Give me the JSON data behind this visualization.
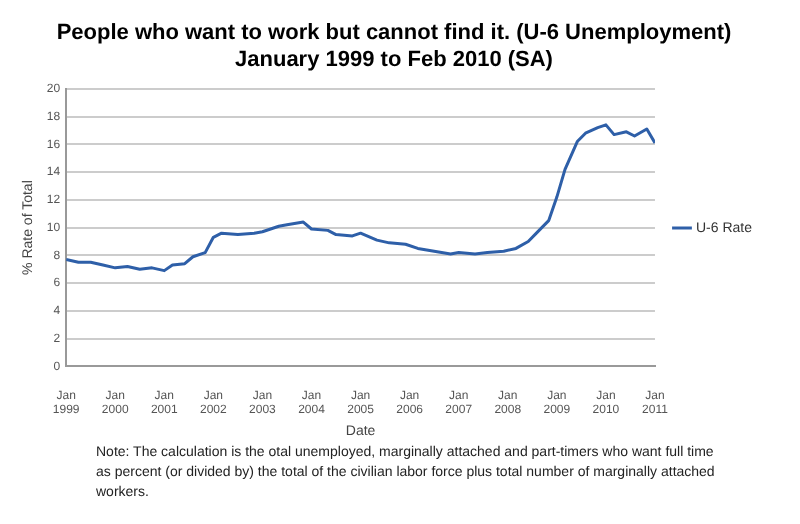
{
  "chart_data": {
    "type": "line",
    "title": "People who want to work but cannot find it. (U-6 Unemployment)",
    "subtitle": "January 1999 to Feb 2010 (SA)",
    "xlabel": "Date",
    "ylabel": "% Rate of Total",
    "x": [
      "1999-01",
      "1999-04",
      "1999-07",
      "1999-10",
      "2000-01",
      "2000-04",
      "2000-07",
      "2000-10",
      "2001-01",
      "2001-03",
      "2001-06",
      "2001-08",
      "2001-11",
      "2002-01",
      "2002-03",
      "2002-07",
      "2002-11",
      "2003-01",
      "2003-05",
      "2003-07",
      "2003-11",
      "2004-01",
      "2004-05",
      "2004-07",
      "2004-11",
      "2005-01",
      "2005-05",
      "2005-08",
      "2005-12",
      "2006-03",
      "2006-07",
      "2006-11",
      "2007-01",
      "2007-05",
      "2007-08",
      "2007-12",
      "2008-03",
      "2008-06",
      "2008-08",
      "2008-11",
      "2009-01",
      "2009-03",
      "2009-06",
      "2009-08",
      "2009-11",
      "2010-01",
      "2010-03",
      "2010-06",
      "2010-08",
      "2010-11",
      "2011-01"
    ],
    "series": [
      {
        "name": "U-6 Rate",
        "color": "#2e5fa8",
        "values": [
          7.7,
          7.5,
          7.5,
          7.3,
          7.1,
          7.2,
          7.0,
          7.1,
          6.9,
          7.3,
          7.4,
          7.9,
          8.2,
          9.3,
          9.6,
          9.5,
          9.6,
          9.7,
          10.1,
          10.2,
          10.4,
          9.9,
          9.8,
          9.5,
          9.4,
          9.6,
          9.1,
          8.9,
          8.8,
          8.5,
          8.3,
          8.1,
          8.2,
          8.1,
          8.2,
          8.3,
          8.5,
          9.0,
          9.6,
          10.5,
          12.2,
          14.2,
          16.2,
          16.8,
          17.2,
          17.4,
          16.7,
          16.9,
          16.6,
          17.1,
          16.1
        ]
      }
    ],
    "xlim": [
      "1999-01",
      "2011-01"
    ],
    "xticks": [
      {
        "value": "1999-01",
        "label": "Jan 1999"
      },
      {
        "value": "2000-01",
        "label": "Jan 2000"
      },
      {
        "value": "2001-01",
        "label": "Jan 2001"
      },
      {
        "value": "2002-01",
        "label": "Jan 2002"
      },
      {
        "value": "2003-01",
        "label": "Jan 2003"
      },
      {
        "value": "2004-01",
        "label": "Jan 2004"
      },
      {
        "value": "2005-01",
        "label": "Jan 2005"
      },
      {
        "value": "2006-01",
        "label": "Jan 2006"
      },
      {
        "value": "2007-01",
        "label": "Jan 2007"
      },
      {
        "value": "2008-01",
        "label": "Jan 2008"
      },
      {
        "value": "2009-01",
        "label": "Jan 2009"
      },
      {
        "value": "2010-01",
        "label": "Jan 2010"
      },
      {
        "value": "2011-01",
        "label": "Jan 2011"
      }
    ],
    "ylim": [
      0,
      20
    ],
    "yticks": [
      0,
      2,
      4,
      6,
      8,
      10,
      12,
      14,
      16,
      18,
      20
    ],
    "grid": "y",
    "legend": "right",
    "marker": "none",
    "line_style": "solid",
    "annotations": [
      "Note: The calculation is the otal unemployed, marginally attached and part-timers who  want full time as percent  (or divided by) the total of the civilian labor force plus total number of marginally attached   workers."
    ]
  }
}
